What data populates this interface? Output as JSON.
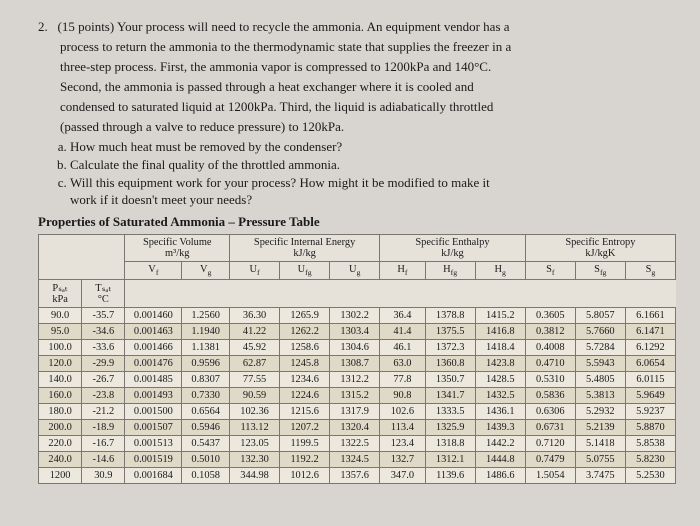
{
  "question": {
    "number": "2.",
    "points": "(15 points)",
    "text_l1": "Your process will need to recycle the ammonia. An equipment vendor has a",
    "text_l2": "process to return the ammonia to the thermodynamic state that supplies the freezer in a",
    "text_l3": "three-step process. First, the ammonia vapor is compressed to 1200kPa and 140°C.",
    "text_l4": "Second, the ammonia is passed through a heat exchanger where it is cooled and",
    "text_l5": "condensed to saturated liquid at 1200kPa. Third, the liquid is adiabatically throttled",
    "text_l6": "(passed through a valve to reduce pressure) to 120kPa.",
    "parts": {
      "a": "How much heat must be removed by the condenser?",
      "b": "Calculate the final quality of the throttled ammonia.",
      "c1": "Will this equipment work for your process? How might it be modified to make it",
      "c2": "work if it doesn't meet your needs?"
    }
  },
  "table": {
    "title": "Properties of Saturated Ammonia – Pressure Table",
    "group_headers": {
      "sv": "Specific Volume",
      "sv_unit": "m³/kg",
      "u": "Specific Internal Energy",
      "u_unit": "kJ/kg",
      "h": "Specific Enthalpy",
      "h_unit": "kJ/kg",
      "s": "Specific Entropy",
      "s_unit": "kJ/kgK"
    },
    "col_headers": {
      "p1": "Pₛₐₜ",
      "p2": "kPa",
      "t1": "Tₛₐₜ",
      "t2": "°C",
      "vf": "Vf",
      "vg": "Vg",
      "uf": "Uf",
      "ufg": "Ufg",
      "ug": "Ug",
      "hf": "Hf",
      "hfg": "Hfg",
      "hg": "Hg",
      "sf": "Sf",
      "sfg": "Sfg",
      "sg": "Sg"
    },
    "rows": [
      [
        "90.0",
        "-35.7",
        "0.001460",
        "1.2560",
        "36.30",
        "1265.9",
        "1302.2",
        "36.4",
        "1378.8",
        "1415.2",
        "0.3605",
        "5.8057",
        "6.1661"
      ],
      [
        "95.0",
        "-34.6",
        "0.001463",
        "1.1940",
        "41.22",
        "1262.2",
        "1303.4",
        "41.4",
        "1375.5",
        "1416.8",
        "0.3812",
        "5.7660",
        "6.1471"
      ],
      [
        "100.0",
        "-33.6",
        "0.001466",
        "1.1381",
        "45.92",
        "1258.6",
        "1304.6",
        "46.1",
        "1372.3",
        "1418.4",
        "0.4008",
        "5.7284",
        "6.1292"
      ],
      [
        "120.0",
        "-29.9",
        "0.001476",
        "0.9596",
        "62.87",
        "1245.8",
        "1308.7",
        "63.0",
        "1360.8",
        "1423.8",
        "0.4710",
        "5.5943",
        "6.0654"
      ],
      [
        "140.0",
        "-26.7",
        "0.001485",
        "0.8307",
        "77.55",
        "1234.6",
        "1312.2",
        "77.8",
        "1350.7",
        "1428.5",
        "0.5310",
        "5.4805",
        "6.0115"
      ],
      [
        "160.0",
        "-23.8",
        "0.001493",
        "0.7330",
        "90.59",
        "1224.6",
        "1315.2",
        "90.8",
        "1341.7",
        "1432.5",
        "0.5836",
        "5.3813",
        "5.9649"
      ],
      [
        "180.0",
        "-21.2",
        "0.001500",
        "0.6564",
        "102.36",
        "1215.6",
        "1317.9",
        "102.6",
        "1333.5",
        "1436.1",
        "0.6306",
        "5.2932",
        "5.9237"
      ],
      [
        "200.0",
        "-18.9",
        "0.001507",
        "0.5946",
        "113.12",
        "1207.2",
        "1320.4",
        "113.4",
        "1325.9",
        "1439.3",
        "0.6731",
        "5.2139",
        "5.8870"
      ],
      [
        "220.0",
        "-16.7",
        "0.001513",
        "0.5437",
        "123.05",
        "1199.5",
        "1322.5",
        "123.4",
        "1318.8",
        "1442.2",
        "0.7120",
        "5.1418",
        "5.8538"
      ],
      [
        "240.0",
        "-14.6",
        "0.001519",
        "0.5010",
        "132.30",
        "1192.2",
        "1324.5",
        "132.7",
        "1312.1",
        "1444.8",
        "0.7479",
        "5.0755",
        "5.8230"
      ],
      [
        "1200",
        "30.9",
        "0.001684",
        "0.1058",
        "344.98",
        "1012.6",
        "1357.6",
        "347.0",
        "1139.6",
        "1486.6",
        "1.5054",
        "3.7475",
        "5.2530"
      ]
    ],
    "styling": {
      "header_bg": "#e6e2da",
      "row_odd_bg": "#ece8de",
      "row_even_bg": "#dfd9c8",
      "border_color": "#7a7772",
      "font_size_pt": 10.4,
      "page_bg": "#d8d5d0"
    }
  }
}
